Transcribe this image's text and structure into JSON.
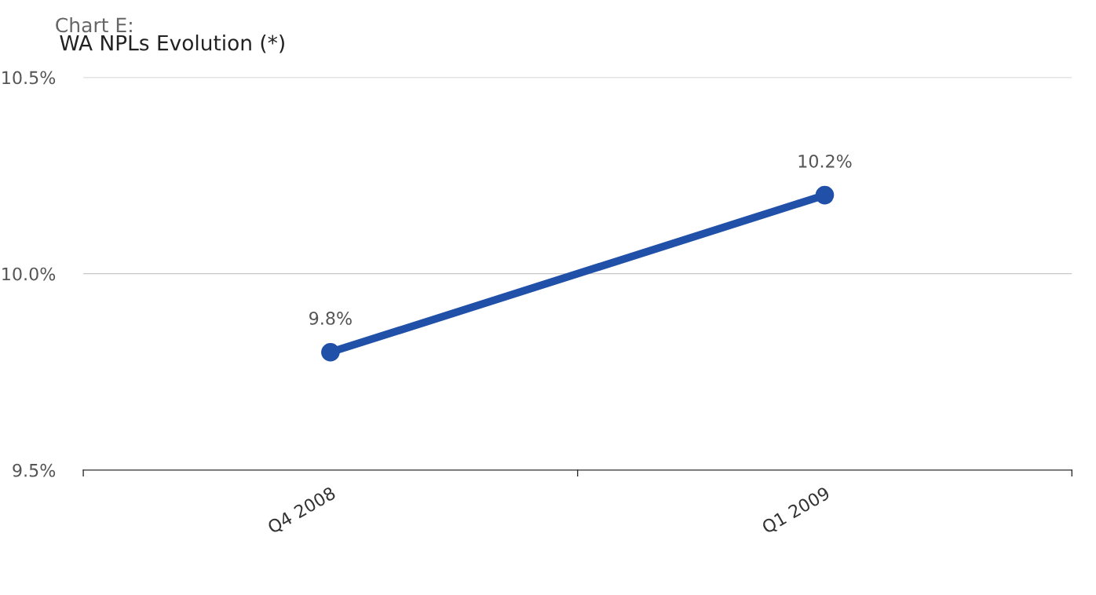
{
  "chart_data": {
    "type": "line",
    "title": "Chart E:",
    "subtitle": "WA NPLs Evolution (*)",
    "categories": [
      "Q4 2008",
      "Q1 2009"
    ],
    "series": [
      {
        "color": "#2050a8",
        "values": [
          9.8,
          10.2
        ],
        "value_labels": [
          "9.8%",
          "10.2%"
        ]
      }
    ],
    "ylim": [
      9.5,
      10.5
    ],
    "yticks": [
      {
        "value": 9.5,
        "label": "9.5%"
      },
      {
        "value": 10.0,
        "label": "10.0%"
      },
      {
        "value": 10.5,
        "label": "10.5%"
      }
    ],
    "grid": "y",
    "marker": "circle",
    "line_style": "solid"
  }
}
